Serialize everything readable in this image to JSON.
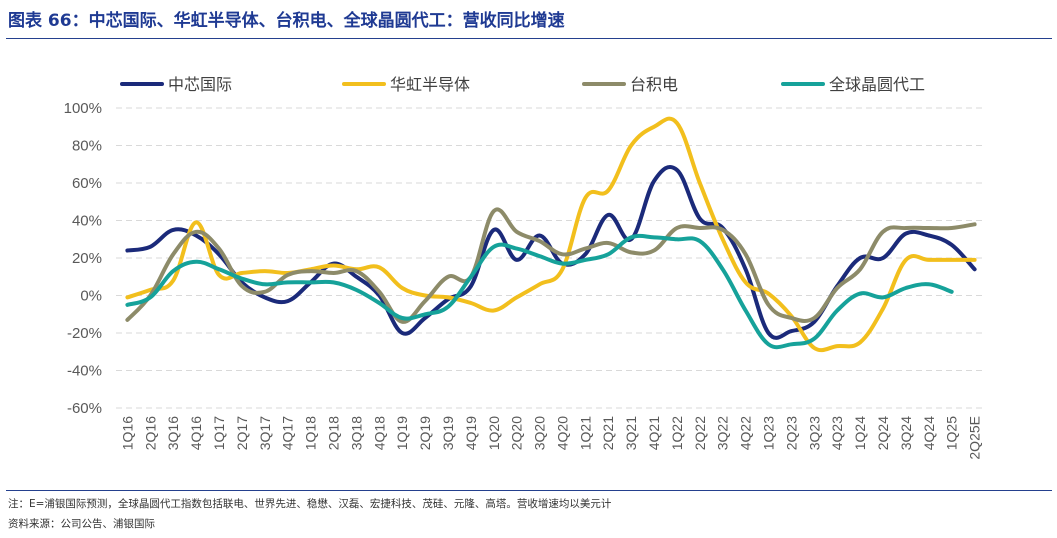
{
  "figure": {
    "title": "图表 66：中芯国际、华虹半导体、台积电、全球晶圆代工：营收同比增速",
    "note": "注：E=浦银国际预测，全球晶圆代工指数包括联电、世界先进、稳懋、汉磊、宏捷科技、茂硅、元隆、高塔。营收增速均以美元计",
    "source": "资料来源：公司公告、浦银国际"
  },
  "chart_data": {
    "type": "line",
    "categories": [
      "1Q16",
      "2Q16",
      "3Q16",
      "4Q16",
      "1Q17",
      "2Q17",
      "3Q17",
      "4Q17",
      "1Q18",
      "2Q18",
      "3Q18",
      "4Q18",
      "1Q19",
      "2Q19",
      "3Q19",
      "4Q19",
      "1Q20",
      "2Q20",
      "3Q20",
      "4Q20",
      "1Q21",
      "2Q21",
      "3Q21",
      "4Q21",
      "1Q22",
      "2Q22",
      "3Q22",
      "4Q22",
      "1Q23",
      "2Q23",
      "3Q23",
      "4Q23",
      "1Q24",
      "2Q24",
      "3Q24",
      "4Q24",
      "1Q25",
      "2Q25E"
    ],
    "y_tick_labels": [
      "100%",
      "80%",
      "60%",
      "40%",
      "20%",
      "0%",
      "-20%",
      "-40%",
      "-60%"
    ],
    "ylim": [
      -60,
      100
    ],
    "grid": "horizontal dashed",
    "legend_position": "top",
    "series": [
      {
        "name": "中芯国际",
        "color": "#1b2a7a",
        "values": [
          24,
          26,
          35,
          32,
          22,
          7,
          -1,
          -3,
          7,
          17,
          10,
          0,
          -20,
          -12,
          -2,
          5,
          35,
          19,
          32,
          17,
          22,
          43,
          30,
          61,
          67,
          41,
          36,
          14,
          -20,
          -19,
          -14,
          5,
          20,
          20,
          33,
          32,
          27,
          14
        ]
      },
      {
        "name": "华虹半导体",
        "color": "#f2bf1d",
        "values": [
          -1,
          3,
          8,
          39,
          11,
          12,
          13,
          12,
          14,
          16,
          14,
          15,
          4,
          0,
          -1,
          -4,
          -8,
          -1,
          6,
          14,
          52,
          56,
          80,
          90,
          92,
          60,
          30,
          7,
          1,
          -11,
          -28,
          -27,
          -25,
          -7,
          19,
          19,
          19,
          19
        ]
      },
      {
        "name": "台积电",
        "color": "#8d8b69",
        "values": [
          -13,
          0,
          22,
          34,
          25,
          5,
          2,
          11,
          13,
          12,
          13,
          2,
          -14,
          -3,
          10,
          10,
          45,
          34,
          29,
          22,
          25,
          28,
          23,
          24,
          36,
          36,
          35,
          22,
          -5,
          -12,
          -12,
          4,
          14,
          34,
          36,
          36,
          36,
          38
        ]
      },
      {
        "name": "全球晶圆代工",
        "color": "#16a29a",
        "values": [
          -5,
          -1,
          13,
          18,
          14,
          9,
          6,
          7,
          7,
          7,
          3,
          -4,
          -12,
          -10,
          -6,
          10,
          26,
          25,
          21,
          17,
          19,
          22,
          31,
          31,
          30,
          29,
          14,
          -8,
          -26,
          -26,
          -23,
          -8,
          1,
          -1,
          4,
          6,
          2,
          null
        ]
      }
    ]
  }
}
